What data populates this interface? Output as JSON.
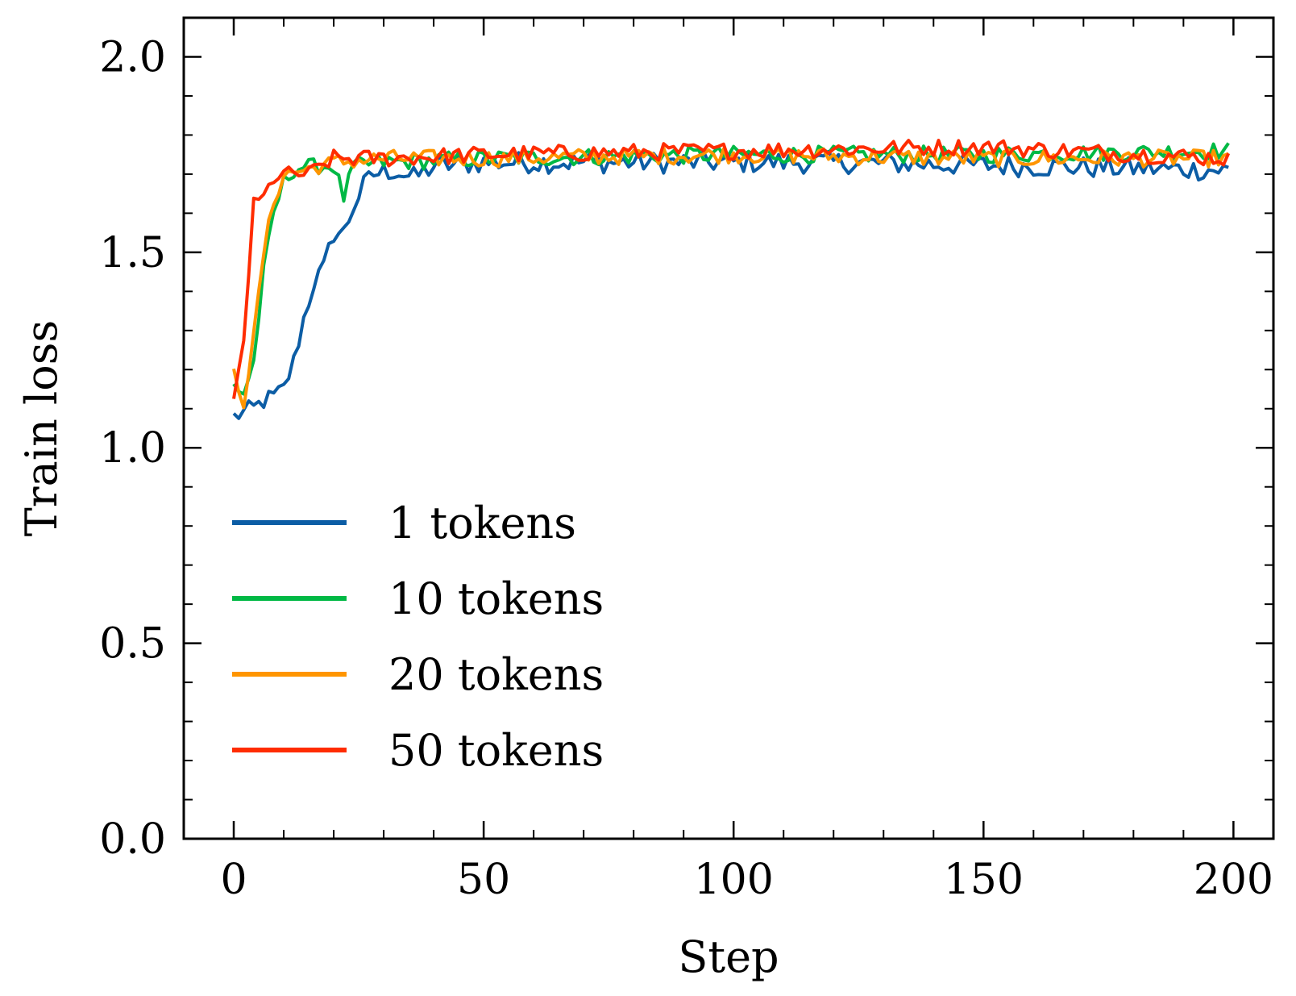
{
  "chart_data": {
    "type": "line",
    "title": "",
    "xlabel": "Step",
    "ylabel": "Train loss",
    "xlim": [
      -10,
      208
    ],
    "ylim": [
      0.0,
      2.1
    ],
    "xticks": [
      0,
      50,
      100,
      150,
      200
    ],
    "xtick_labels": [
      "0",
      "50",
      "100",
      "150",
      "200"
    ],
    "yticks": [
      0.0,
      0.5,
      1.0,
      1.5,
      2.0
    ],
    "ytick_labels": [
      "0.0",
      "0.5",
      "1.0",
      "1.5",
      "2.0"
    ],
    "grid": false,
    "legend_position": "lower-left",
    "series": [
      {
        "name": "1 tokens",
        "color": "#0C5DA5",
        "anchors": [
          [
            0,
            1.08
          ],
          [
            2,
            1.09
          ],
          [
            4,
            1.1
          ],
          [
            6,
            1.12
          ],
          [
            8,
            1.13
          ],
          [
            10,
            1.15
          ],
          [
            12,
            1.22
          ],
          [
            14,
            1.33
          ],
          [
            16,
            1.42
          ],
          [
            18,
            1.46
          ],
          [
            20,
            1.55
          ],
          [
            22,
            1.55
          ],
          [
            24,
            1.62
          ],
          [
            26,
            1.67
          ],
          [
            28,
            1.7
          ],
          [
            32,
            1.71
          ],
          [
            36,
            1.69
          ],
          [
            40,
            1.72
          ],
          [
            50,
            1.73
          ],
          [
            80,
            1.73
          ],
          [
            120,
            1.73
          ],
          [
            160,
            1.72
          ],
          [
            199,
            1.71
          ]
        ],
        "noise": 0.028
      },
      {
        "name": "10 tokens",
        "color": "#00B945",
        "anchors": [
          [
            0,
            1.16
          ],
          [
            2,
            1.14
          ],
          [
            4,
            1.22
          ],
          [
            6,
            1.45
          ],
          [
            8,
            1.6
          ],
          [
            10,
            1.68
          ],
          [
            12,
            1.71
          ],
          [
            14,
            1.72
          ],
          [
            20,
            1.72
          ],
          [
            22,
            1.64
          ],
          [
            24,
            1.72
          ],
          [
            30,
            1.73
          ],
          [
            50,
            1.74
          ],
          [
            100,
            1.75
          ],
          [
            150,
            1.75
          ],
          [
            199,
            1.76
          ]
        ],
        "noise": 0.022
      },
      {
        "name": "20 tokens",
        "color": "#FF9500",
        "anchors": [
          [
            0,
            1.19
          ],
          [
            2,
            1.12
          ],
          [
            4,
            1.28
          ],
          [
            6,
            1.5
          ],
          [
            8,
            1.63
          ],
          [
            10,
            1.7
          ],
          [
            14,
            1.71
          ],
          [
            20,
            1.73
          ],
          [
            30,
            1.74
          ],
          [
            50,
            1.74
          ],
          [
            100,
            1.75
          ],
          [
            150,
            1.74
          ],
          [
            199,
            1.74
          ]
        ],
        "noise": 0.022
      },
      {
        "name": "50 tokens",
        "color": "#FF2C00",
        "anchors": [
          [
            0,
            1.11
          ],
          [
            2,
            1.28
          ],
          [
            4,
            1.62
          ],
          [
            6,
            1.64
          ],
          [
            8,
            1.69
          ],
          [
            10,
            1.7
          ],
          [
            15,
            1.7
          ],
          [
            20,
            1.74
          ],
          [
            30,
            1.74
          ],
          [
            50,
            1.75
          ],
          [
            100,
            1.76
          ],
          [
            150,
            1.77
          ],
          [
            199,
            1.74
          ]
        ],
        "noise": 0.022
      }
    ]
  }
}
